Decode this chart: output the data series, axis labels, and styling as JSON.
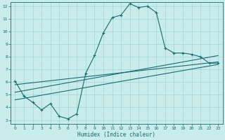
{
  "xlabel": "Humidex (Indice chaleur)",
  "ylabel": "",
  "xlim": [
    -0.5,
    23.5
  ],
  "ylim": [
    2.7,
    12.3
  ],
  "yticks": [
    3,
    4,
    5,
    6,
    7,
    8,
    9,
    10,
    11,
    12
  ],
  "xticks": [
    0,
    1,
    2,
    3,
    4,
    5,
    6,
    7,
    8,
    9,
    10,
    11,
    12,
    13,
    14,
    15,
    16,
    17,
    18,
    19,
    20,
    21,
    22,
    23
  ],
  "background_color": "#c8ecec",
  "grid_color": "#b0d8d8",
  "line_color": "#1a6b6b",
  "main_curve_x": [
    0,
    1,
    2,
    3,
    4,
    5,
    6,
    7,
    8,
    9,
    10,
    11,
    12,
    13,
    14,
    15,
    16,
    17,
    18,
    19,
    20,
    21,
    22,
    23
  ],
  "main_curve_y": [
    6.1,
    4.9,
    4.4,
    3.8,
    4.3,
    3.3,
    3.1,
    3.5,
    6.7,
    8.1,
    9.9,
    11.1,
    11.3,
    12.2,
    11.9,
    12.0,
    11.5,
    8.7,
    8.3,
    8.3,
    8.2,
    8.0,
    7.5,
    7.5
  ],
  "line1_x": [
    0,
    23
  ],
  "line1_y": [
    5.8,
    7.6
  ],
  "line2_x": [
    0,
    23
  ],
  "line2_y": [
    5.2,
    8.1
  ],
  "line3_x": [
    0,
    23
  ],
  "line3_y": [
    4.6,
    7.4
  ]
}
